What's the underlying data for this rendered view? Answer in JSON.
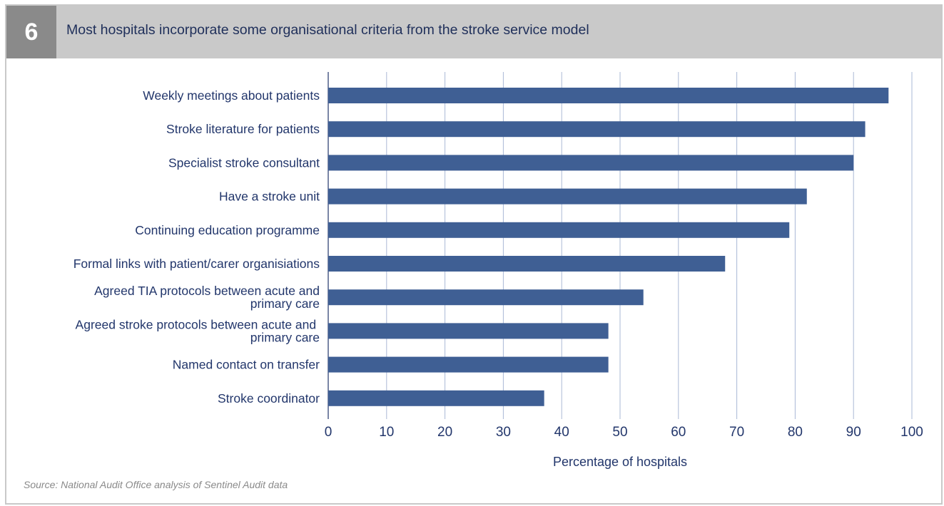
{
  "figure": {
    "number": "6",
    "title": "Most hospitals incorporate some organisational criteria from the stroke service model",
    "source": "Source: National Audit Office analysis of Sentinel Audit data"
  },
  "colors": {
    "bar": "#3f5f94",
    "gridline": "#aab8d6",
    "header_band": "#c9c9c9",
    "number_box": "#8a8a8a",
    "text": "#22366b"
  },
  "chart_data": {
    "type": "bar",
    "orientation": "horizontal",
    "categories": [
      "Weekly meetings about patients",
      "Stroke literature for patients",
      "Specialist stroke consultant",
      "Have a stroke unit",
      "Continuing education programme",
      "Formal links with patient/carer organisiations",
      "Agreed TIA protocols between acute and primary care",
      "Agreed stroke protocols between acute and  primary care",
      "Named contact on transfer",
      "Stroke coordinator"
    ],
    "category_lines": [
      [
        "Weekly meetings about patients"
      ],
      [
        "Stroke literature for patients"
      ],
      [
        "Specialist stroke consultant"
      ],
      [
        "Have a stroke unit"
      ],
      [
        "Continuing education programme"
      ],
      [
        "Formal links with patient/carer organisiations"
      ],
      [
        "Agreed TIA protocols between acute and",
        "primary care"
      ],
      [
        "Agreed stroke protocols between acute and ",
        "primary care"
      ],
      [
        "Named contact on transfer"
      ],
      [
        "Stroke coordinator"
      ]
    ],
    "values": [
      96,
      92,
      90,
      82,
      79,
      68,
      54,
      48,
      48,
      37
    ],
    "xlabel": "Percentage of hospitals",
    "ylabel": "",
    "xlim": [
      0,
      100
    ],
    "xticks": [
      0,
      10,
      20,
      30,
      40,
      50,
      60,
      70,
      80,
      90,
      100
    ],
    "grid": true,
    "legend": "none"
  }
}
